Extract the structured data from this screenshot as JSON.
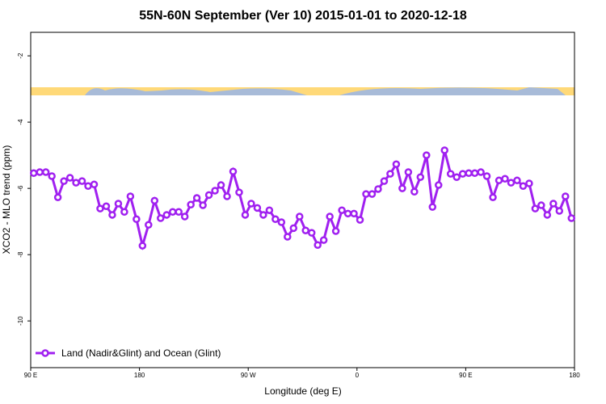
{
  "chart_data": {
    "type": "line",
    "title": "55N-60N September (Ver 10)   2015-01-01 to 2020-12-18",
    "x_label": "Longitude (deg E)",
    "y_label": "XCO2 - MLO trend (ppm)",
    "xlim": [
      90,
      540
    ],
    "xticks": [
      {
        "value": 90,
        "label": "90 E"
      },
      180,
      {
        "value": 270,
        "label": "90 W"
      },
      {
        "value": 360,
        "label": "0"
      },
      {
        "value": 450,
        "label": "90 E"
      },
      {
        "value": 540,
        "label": "180"
      }
    ],
    "ylim": [
      -11.41,
      -1.29
    ],
    "yticks": [
      -10,
      -8,
      -6,
      -4,
      -2
    ],
    "legend": "bottom-left",
    "series": [
      {
        "name": "Land (Nadir&Glint) and Ocean (Glint)",
        "color": "#a020f0",
        "x": [
          92.5,
          97.5,
          102.5,
          107.5,
          112.5,
          117.5,
          122.5,
          127.5,
          132.5,
          137.5,
          142.5,
          147.5,
          152.5,
          157.5,
          162.5,
          167.5,
          172.5,
          177.5,
          182.5,
          187.5,
          192.5,
          197.5,
          202.5,
          207.5,
          212.5,
          217.5,
          222.5,
          227.5,
          232.5,
          237.5,
          242.5,
          247.5,
          252.5,
          257.5,
          262.5,
          267.5,
          272.5,
          277.5,
          282.5,
          287.5,
          292.5,
          297.5,
          302.5,
          307.5,
          312.5,
          317.5,
          322.5,
          327.5,
          332.5,
          337.5,
          342.5,
          347.5,
          352.5,
          357.5,
          362.5,
          367.5,
          372.5,
          377.5,
          382.5,
          387.5,
          392.5,
          397.5,
          402.5,
          407.5,
          412.5,
          417.5,
          422.5,
          427.5,
          432.5,
          437.5,
          442.5,
          447.5,
          452.5,
          457.5,
          462.5,
          467.5,
          472.5,
          477.5,
          482.5,
          487.5,
          492.5,
          497.5,
          502.5,
          507.5,
          512.5,
          517.5,
          522.5,
          527.5,
          532.5,
          537.5
        ],
        "values": [
          -5.54,
          -5.51,
          -5.51,
          -5.63,
          -6.27,
          -5.78,
          -5.68,
          -5.83,
          -5.78,
          -5.93,
          -5.88,
          -6.61,
          -6.54,
          -6.8,
          -6.46,
          -6.71,
          -6.24,
          -6.93,
          -7.73,
          -7.1,
          -6.37,
          -6.9,
          -6.8,
          -6.71,
          -6.71,
          -6.85,
          -6.49,
          -6.29,
          -6.51,
          -6.2,
          -6.07,
          -5.9,
          -6.24,
          -5.49,
          -6.12,
          -6.8,
          -6.46,
          -6.59,
          -6.8,
          -6.66,
          -6.93,
          -7.02,
          -7.46,
          -7.2,
          -6.85,
          -7.27,
          -7.34,
          -7.71,
          -7.56,
          -6.85,
          -7.29,
          -6.66,
          -6.76,
          -6.76,
          -6.95,
          -6.17,
          -6.17,
          -6.02,
          -5.78,
          -5.56,
          -5.27,
          -6.0,
          -5.51,
          -6.1,
          -5.66,
          -5.0,
          -6.56,
          -5.9,
          -4.85,
          -5.56,
          -5.66,
          -5.56,
          -5.54,
          -5.54,
          -5.51,
          -5.63,
          -6.27,
          -5.76,
          -5.71,
          -5.83,
          -5.76,
          -5.93,
          -5.85,
          -6.61,
          -6.51,
          -6.8,
          -6.46,
          -6.68,
          -6.24,
          -6.9
        ]
      }
    ]
  }
}
